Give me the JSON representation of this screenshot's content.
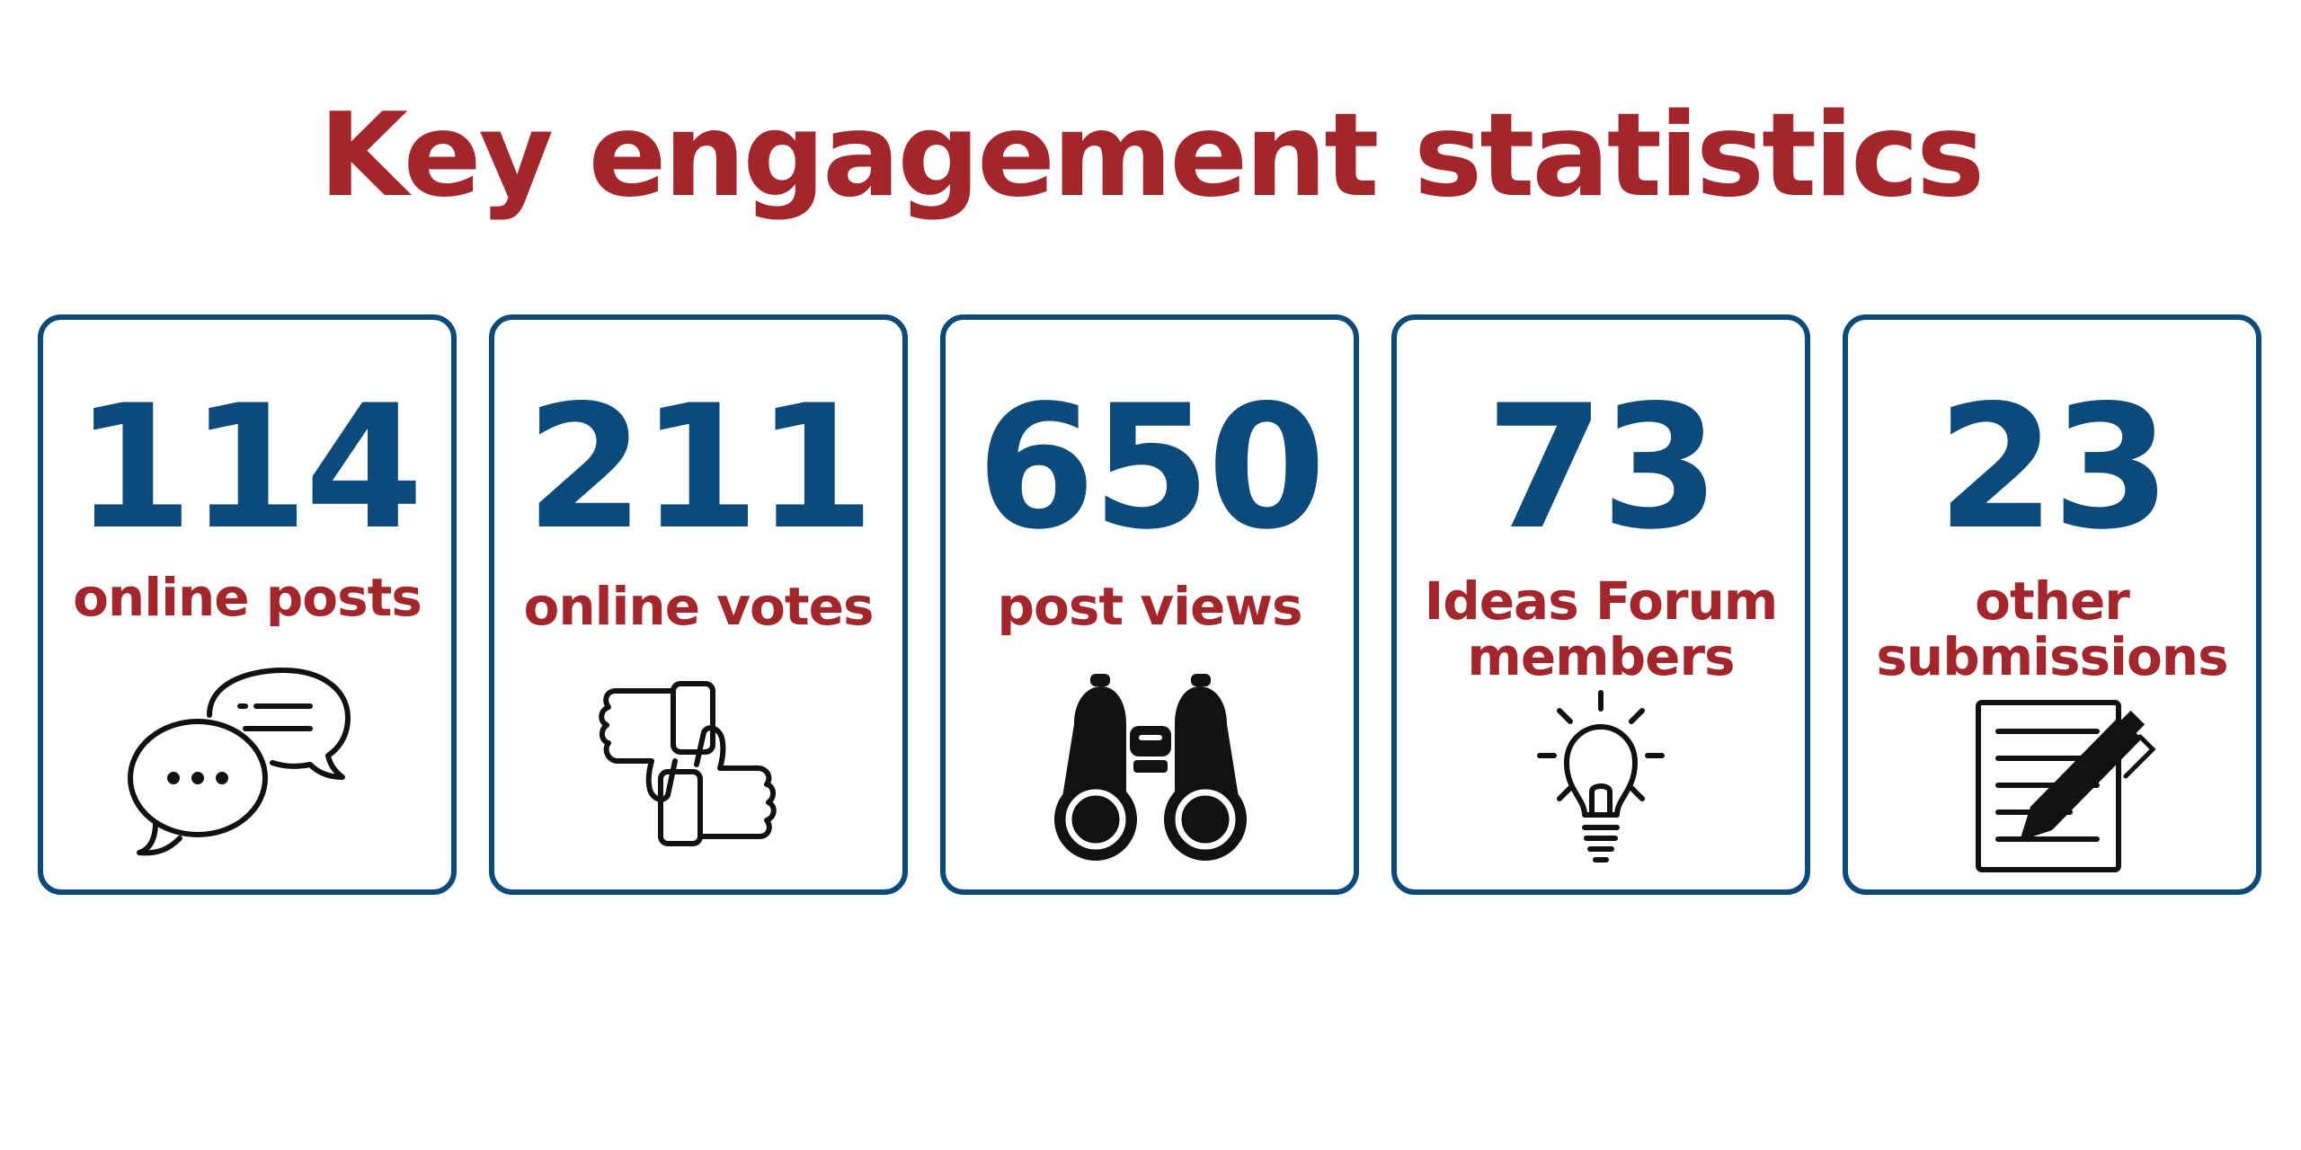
{
  "title": "Key engagement statistics",
  "colors": {
    "title": "#a3262c",
    "number": "#0b4a7a",
    "border": "#0b4a7a",
    "icon": "#111111"
  },
  "stats": [
    {
      "value": "114",
      "label_line1": "online posts",
      "label_line2": "",
      "icon": "chat-bubbles-icon"
    },
    {
      "value": "211",
      "label_line1": "online votes",
      "label_line2": "",
      "icon": "thumbs-up-down-icon"
    },
    {
      "value": "650",
      "label_line1": "post views",
      "label_line2": "",
      "icon": "binoculars-icon"
    },
    {
      "value": "73",
      "label_line1": "Ideas Forum",
      "label_line2": "members",
      "icon": "lightbulb-icon"
    },
    {
      "value": "23",
      "label_line1": "other",
      "label_line2": "submissions",
      "icon": "document-pen-icon"
    }
  ]
}
